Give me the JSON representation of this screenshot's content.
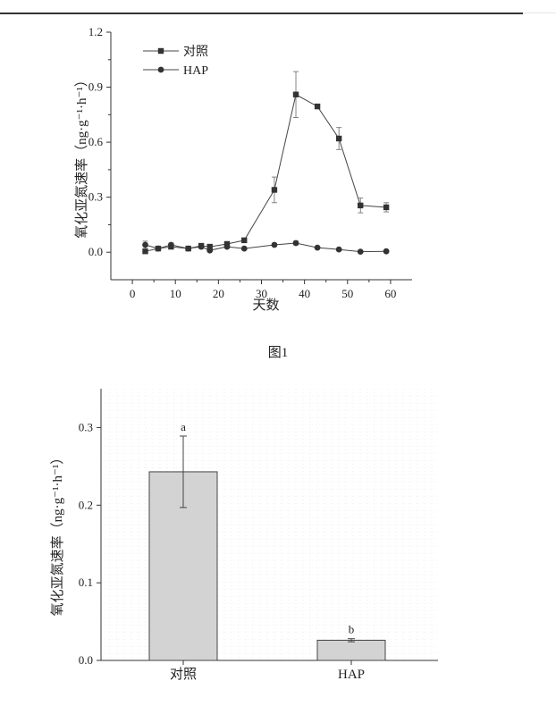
{
  "figure_caption": "图1",
  "chart_data": [
    {
      "type": "line",
      "xlabel": "天数",
      "ylabel": "氧化亚氮速率（ng·g⁻¹·h⁻¹）",
      "xlim": [
        -5,
        65
      ],
      "ylim": [
        -0.15,
        1.2
      ],
      "xticks": [
        0,
        10,
        20,
        30,
        40,
        50,
        60
      ],
      "xtick_labels": [
        "0",
        "10",
        "20",
        "30",
        "40",
        "50",
        "60"
      ],
      "yticks": [
        0.0,
        0.3,
        0.6,
        0.9,
        1.2
      ],
      "ytick_labels": [
        "0.0",
        "0.3",
        "0.6",
        "0.9",
        "1.2"
      ],
      "legend_position": "top-left",
      "series": [
        {
          "name": "对照",
          "marker": "square",
          "color": "#444444",
          "x": [
            3,
            6,
            9,
            13,
            16,
            18,
            22,
            26,
            33,
            38,
            43,
            48,
            53,
            59
          ],
          "y": [
            0.005,
            0.02,
            0.03,
            0.02,
            0.035,
            0.03,
            0.045,
            0.065,
            0.34,
            0.86,
            0.795,
            0.62,
            0.255,
            0.245
          ],
          "error": [
            0.005,
            0.005,
            0.01,
            0.005,
            0.01,
            0.01,
            0.01,
            0.005,
            0.07,
            0.125,
            0.01,
            0.06,
            0.04,
            0.025
          ]
        },
        {
          "name": "HAP",
          "marker": "circle",
          "color": "#444444",
          "x": [
            3,
            6,
            9,
            13,
            16,
            18,
            22,
            26,
            33,
            38,
            43,
            48,
            53,
            59
          ],
          "y": [
            0.04,
            0.02,
            0.04,
            0.02,
            0.03,
            0.01,
            0.03,
            0.02,
            0.04,
            0.05,
            0.025,
            0.015,
            0.003,
            0.005
          ],
          "error": [
            0.02,
            0.01,
            0.01,
            0.005,
            0.005,
            0.005,
            0.005,
            0.005,
            0.005,
            0.01,
            0.005,
            0.005,
            0.002,
            0.002
          ]
        }
      ]
    },
    {
      "type": "bar",
      "xlabel": "",
      "ylabel": "氧化亚氮速率（ng·g⁻¹·h⁻¹）",
      "ylim": [
        0,
        0.35
      ],
      "yticks": [
        0.0,
        0.1,
        0.2,
        0.3
      ],
      "ytick_labels": [
        "0.0",
        "0.1",
        "0.2",
        "0.3"
      ],
      "grid": true,
      "categories": [
        "对照",
        "HAP"
      ],
      "values": [
        0.243,
        0.026
      ],
      "errors": [
        0.046,
        0.002
      ],
      "letters": [
        "a",
        "b"
      ],
      "bar_color": "#d3d3d3"
    }
  ]
}
